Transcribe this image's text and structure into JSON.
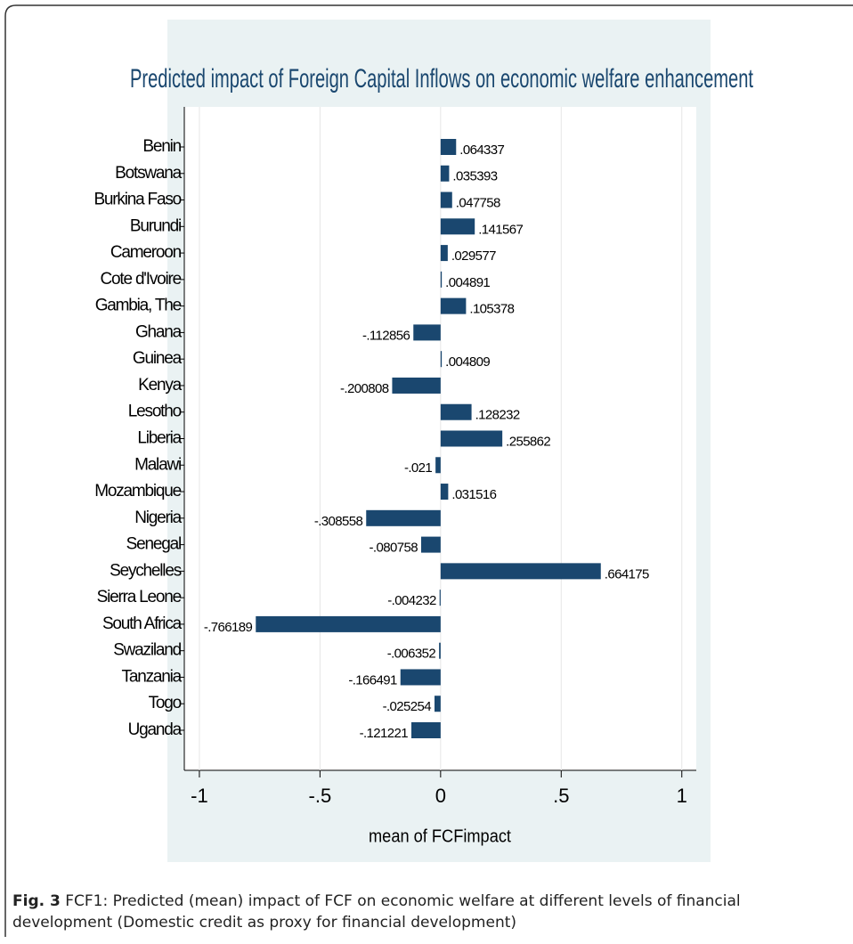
{
  "chart_data": {
    "type": "barh",
    "title": "Predicted impact of Foreign Capital Inflows on economic welfare enhancement",
    "xlabel": "mean of FCFimpact",
    "categories": [
      "Benin",
      "Botswana",
      "Burkina Faso",
      "Burundi",
      "Cameroon",
      "Cote d'Ivoire",
      "Gambia, The",
      "Ghana",
      "Guinea",
      "Kenya",
      "Lesotho",
      "Liberia",
      "Malawi",
      "Mozambique",
      "Nigeria",
      "Senegal",
      "Seychelles",
      "Sierra Leone",
      "South Africa",
      "Swaziland",
      "Tanzania",
      "Togo",
      "Uganda"
    ],
    "values": [
      0.064337,
      0.035393,
      0.047758,
      0.141567,
      0.029577,
      0.004891,
      0.105378,
      -0.112856,
      0.004809,
      -0.200808,
      0.128232,
      0.255862,
      -0.021,
      0.031516,
      -0.308558,
      -0.080758,
      0.664175,
      -0.004232,
      -0.766189,
      -0.006352,
      -0.166491,
      -0.025254,
      -0.121221
    ],
    "value_labels": [
      ".064337",
      ".035393",
      ".047758",
      ".141567",
      ".029577",
      ".004891",
      ".105378",
      "-.112856",
      ".004809",
      "-.200808",
      ".128232",
      ".255862",
      "-.021",
      ".031516",
      "-.308558",
      "-.080758",
      ".664175",
      "-.004232",
      "-.766189",
      "-.006352",
      "-.166491",
      "-.025254",
      "-.121221"
    ],
    "color": "#1a476f",
    "xlim": [
      -1.0625,
      1.06
    ],
    "xticks": [
      -1,
      {
        "value": -0.5,
        "label": "-.5"
      },
      0,
      {
        "value": 0.5,
        "label": ".5"
      },
      1
    ],
    "grid": true
  },
  "caption": {
    "label": "Fig. 3",
    "text": "FCF1: Predicted (mean) impact of FCF on economic welfare at different levels of financial development (Domestic credit as proxy for financial development)"
  }
}
